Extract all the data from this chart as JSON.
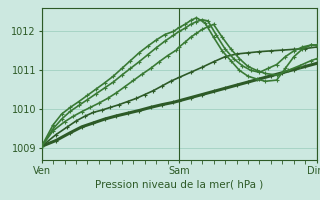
{
  "bg_color": "#cce8e0",
  "grid_color": "#99ccbb",
  "line_color_dark": "#2d5a27",
  "line_color_mid": "#3a7a35",
  "line_color_light": "#4aaa4a",
  "xlabel": "Pression niveau de la mer( hPa )",
  "x_ticks": [
    0,
    48,
    96
  ],
  "x_tick_labels": [
    "Ven",
    "Sam",
    "Dim"
  ],
  "ylim": [
    1008.7,
    1012.6
  ],
  "yticks": [
    1009,
    1010,
    1011,
    1012
  ],
  "series": [
    {
      "x": [
        0,
        5,
        10,
        14,
        18,
        22,
        26,
        30,
        34,
        38,
        42,
        46,
        48,
        52,
        56,
        60,
        64,
        68,
        72,
        76,
        80,
        84,
        88,
        92,
        96
      ],
      "y": [
        1009.05,
        1009.2,
        1009.4,
        1009.55,
        1009.65,
        1009.75,
        1009.83,
        1009.9,
        1009.97,
        1010.05,
        1010.12,
        1010.18,
        1010.22,
        1010.3,
        1010.38,
        1010.46,
        1010.54,
        1010.62,
        1010.7,
        1010.78,
        1010.86,
        1010.94,
        1011.02,
        1011.1,
        1011.18
      ],
      "color": "#2d5a27",
      "lw": 2.2,
      "marker": true
    },
    {
      "x": [
        0,
        5,
        9,
        12,
        15,
        18,
        21,
        24,
        27,
        30,
        33,
        36,
        39,
        42,
        45,
        48,
        52,
        56,
        60,
        64,
        68,
        72,
        76,
        80,
        84,
        88,
        92,
        96
      ],
      "y": [
        1009.05,
        1009.35,
        1009.55,
        1009.7,
        1009.82,
        1009.92,
        1009.98,
        1010.05,
        1010.12,
        1010.2,
        1010.28,
        1010.38,
        1010.48,
        1010.6,
        1010.72,
        1010.82,
        1010.95,
        1011.08,
        1011.22,
        1011.35,
        1011.42,
        1011.45,
        1011.48,
        1011.5,
        1011.52,
        1011.54,
        1011.56,
        1011.6
      ],
      "color": "#2d5a27",
      "lw": 1.2,
      "marker": true
    },
    {
      "x": [
        0,
        4,
        8,
        11,
        14,
        17,
        20,
        23,
        26,
        29,
        32,
        35,
        38,
        41,
        44,
        47,
        48,
        50,
        52,
        54,
        56,
        58,
        60,
        63,
        66,
        69,
        72,
        75,
        78,
        82,
        86,
        90,
        94,
        96
      ],
      "y": [
        1009.05,
        1009.45,
        1009.68,
        1009.82,
        1009.94,
        1010.05,
        1010.16,
        1010.28,
        1010.42,
        1010.58,
        1010.74,
        1010.9,
        1011.05,
        1011.22,
        1011.38,
        1011.52,
        1011.6,
        1011.72,
        1011.85,
        1011.95,
        1012.05,
        1012.12,
        1012.18,
        1011.85,
        1011.55,
        1011.3,
        1011.1,
        1011.0,
        1010.92,
        1010.88,
        1011.0,
        1011.12,
        1011.25,
        1011.3
      ],
      "color": "#3a7a35",
      "lw": 1.2,
      "marker": true
    },
    {
      "x": [
        0,
        4,
        7,
        10,
        13,
        16,
        19,
        22,
        25,
        28,
        31,
        34,
        37,
        40,
        43,
        46,
        48,
        50,
        52,
        54,
        56,
        58,
        61,
        64,
        67,
        70,
        73,
        76,
        79,
        82,
        85,
        88,
        91,
        94,
        96
      ],
      "y": [
        1009.05,
        1009.5,
        1009.75,
        1009.95,
        1010.1,
        1010.25,
        1010.4,
        1010.55,
        1010.7,
        1010.88,
        1011.05,
        1011.22,
        1011.4,
        1011.58,
        1011.75,
        1011.9,
        1012.0,
        1012.08,
        1012.18,
        1012.25,
        1012.3,
        1012.27,
        1011.9,
        1011.55,
        1011.3,
        1011.12,
        1011.0,
        1010.95,
        1011.05,
        1011.15,
        1011.35,
        1011.5,
        1011.6,
        1011.65,
        1011.65
      ],
      "color": "#3a7a35",
      "lw": 1.2,
      "marker": true
    },
    {
      "x": [
        0,
        4,
        7,
        10,
        13,
        16,
        19,
        22,
        25,
        28,
        31,
        34,
        37,
        40,
        43,
        46,
        48,
        50,
        52,
        54,
        57,
        60,
        63,
        66,
        69,
        72,
        75,
        78,
        82,
        85,
        88,
        91,
        94,
        96
      ],
      "y": [
        1009.05,
        1009.6,
        1009.88,
        1010.05,
        1010.2,
        1010.36,
        1010.52,
        1010.68,
        1010.85,
        1011.05,
        1011.25,
        1011.45,
        1011.62,
        1011.78,
        1011.92,
        1012.0,
        1012.1,
        1012.18,
        1012.28,
        1012.35,
        1012.22,
        1011.85,
        1011.5,
        1011.25,
        1011.0,
        1010.85,
        1010.78,
        1010.72,
        1010.75,
        1011.05,
        1011.35,
        1011.55,
        1011.65,
        1011.65
      ],
      "color": "#3a7a35",
      "lw": 1.2,
      "marker": true
    }
  ],
  "vlines": [
    0,
    48,
    96
  ],
  "minor_x_spacing": 4
}
